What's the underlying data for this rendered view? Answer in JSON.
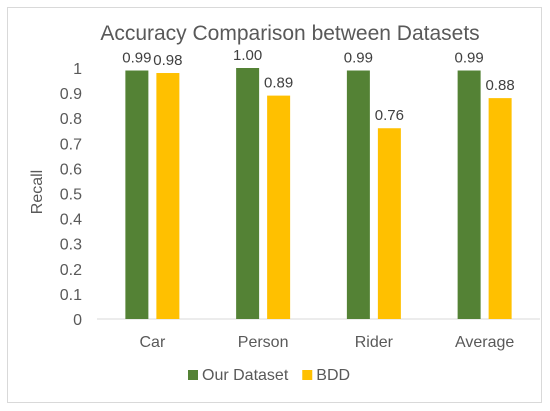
{
  "chart_data": {
    "type": "bar",
    "title": "Accuracy Comparison between Datasets",
    "ylabel": "Recall",
    "xlabel": "",
    "categories": [
      "Car",
      "Person",
      "Rider",
      "Average"
    ],
    "series": [
      {
        "name": "Our Dataset",
        "color": "#548235",
        "values": [
          0.99,
          1.0,
          0.99,
          0.99
        ],
        "labels": [
          "0.99",
          "1.00",
          "0.99",
          "0.99"
        ]
      },
      {
        "name": "BDD",
        "color": "#ffc000",
        "values": [
          0.98,
          0.89,
          0.76,
          0.88
        ],
        "labels": [
          "0.98",
          "0.89",
          "0.76",
          "0.88"
        ]
      }
    ],
    "ylim": [
      0,
      1
    ],
    "yticks": [
      "0",
      "0.1",
      "0.2",
      "0.3",
      "0.4",
      "0.5",
      "0.6",
      "0.7",
      "0.8",
      "0.9",
      "1"
    ],
    "grid": false,
    "legend_position": "bottom"
  }
}
